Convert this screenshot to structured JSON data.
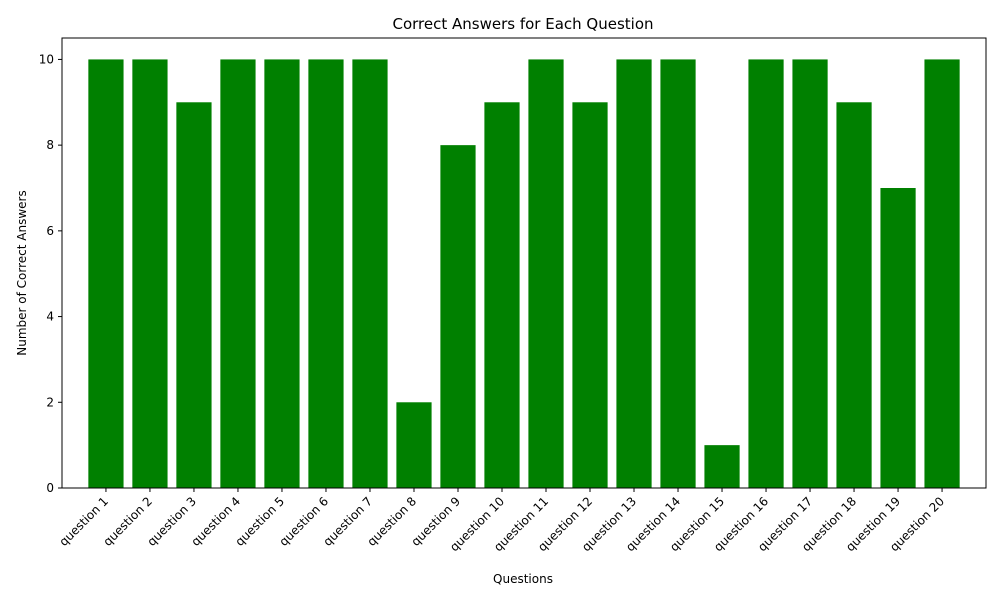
{
  "chart_data": {
    "type": "bar",
    "title": "Correct Answers for Each Question",
    "xlabel": "Questions",
    "ylabel": "Number of Correct Answers",
    "categories": [
      "question 1",
      "question 2",
      "question 3",
      "question 4",
      "question 5",
      "question 6",
      "question 7",
      "question 8",
      "question 9",
      "question 10",
      "question 11",
      "question 12",
      "question 13",
      "question 14",
      "question 15",
      "question 16",
      "question 17",
      "question 18",
      "question 19",
      "question 20"
    ],
    "values": [
      10,
      10,
      9,
      10,
      10,
      10,
      10,
      2,
      8,
      9,
      10,
      9,
      10,
      10,
      1,
      10,
      10,
      9,
      7,
      10
    ],
    "ylim": [
      0,
      10.5
    ],
    "yticks": [
      0,
      2,
      4,
      6,
      8,
      10
    ],
    "grid": false,
    "bar_color": "#008000"
  }
}
